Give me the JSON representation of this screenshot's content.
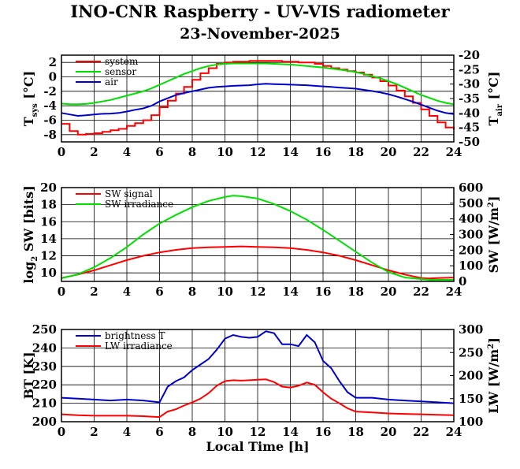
{
  "title": "INO-CNR Raspberry - UV-VIS radiometer",
  "date": "23-November-2025",
  "chart_data": [
    {
      "type": "line",
      "xlabel": "",
      "xlim": [
        0,
        24
      ],
      "xticks": [
        "0",
        "2",
        "4",
        "6",
        "8",
        "10",
        "12",
        "14",
        "16",
        "18",
        "20",
        "22",
        "24"
      ],
      "ylabel": "T",
      "ylabel_sub": "sys",
      "ylabel_unit": "[°C]",
      "ylim": [
        -9,
        3
      ],
      "yticks": [
        "2",
        "0",
        "-2",
        "-4",
        "-6",
        "-8"
      ],
      "y2label": "T",
      "y2label_sub": "air",
      "y2label_unit": "[°C]",
      "y2lim": [
        -50,
        -20
      ],
      "y2ticks": [
        "-20",
        "-25",
        "-30",
        "-35",
        "-40",
        "-45",
        "-50"
      ],
      "legend": "top-left",
      "series": [
        {
          "name": "system",
          "color": "#ff0000",
          "axis": "left",
          "x": [
            0,
            0.5,
            1,
            1.5,
            2,
            2.5,
            3,
            3.5,
            4,
            4.5,
            5,
            5.5,
            6,
            6.5,
            7,
            7.5,
            8,
            8.5,
            9,
            9.5,
            10,
            10.5,
            11,
            11.5,
            12,
            12.5,
            13,
            13.5,
            14,
            14.5,
            15,
            15.5,
            16,
            16.5,
            17,
            17.5,
            18,
            18.5,
            19,
            19.5,
            20,
            20.5,
            21,
            21.5,
            22,
            22.5,
            23,
            23.5,
            24
          ],
          "y": [
            -6.5,
            -7.5,
            -8,
            -7.9,
            -7.8,
            -7.6,
            -7.4,
            -7.2,
            -6.8,
            -6.4,
            -6.0,
            -5.3,
            -4.2,
            -3.3,
            -2.3,
            -1.4,
            -0.4,
            0.5,
            1.2,
            1.8,
            2.0,
            2.1,
            2.1,
            2.2,
            2.2,
            2.2,
            2.2,
            2.1,
            2.1,
            2.0,
            2.0,
            1.8,
            1.5,
            1.2,
            1.0,
            0.8,
            0.6,
            0.3,
            -0.1,
            -0.6,
            -1.2,
            -1.9,
            -2.7,
            -3.6,
            -4.5,
            -5.4,
            -6.3,
            -7.0,
            -7.3
          ]
        },
        {
          "name": "sensor",
          "color": "#00e000",
          "axis": "left",
          "x": [
            0,
            0.5,
            1,
            1.5,
            2,
            2.5,
            3,
            3.5,
            4,
            4.5,
            5,
            5.5,
            6,
            6.5,
            7,
            7.5,
            8,
            8.5,
            9,
            9.5,
            10,
            10.5,
            11,
            11.5,
            12,
            12.5,
            13,
            13.5,
            14,
            14.5,
            15,
            15.5,
            16,
            16.5,
            17,
            17.5,
            18,
            18.5,
            19,
            19.5,
            20,
            20.5,
            21,
            21.5,
            22,
            22.5,
            23,
            23.5,
            24
          ],
          "y": [
            -3.7,
            -3.8,
            -3.8,
            -3.75,
            -3.6,
            -3.4,
            -3.2,
            -2.9,
            -2.6,
            -2.3,
            -2.0,
            -1.6,
            -1.1,
            -0.6,
            -0.1,
            0.4,
            0.8,
            1.2,
            1.5,
            1.7,
            1.8,
            1.85,
            1.85,
            1.85,
            1.85,
            1.85,
            1.8,
            1.75,
            1.7,
            1.6,
            1.5,
            1.4,
            1.3,
            1.15,
            1.0,
            0.85,
            0.65,
            0.4,
            0.1,
            -0.2,
            -0.6,
            -1.0,
            -1.5,
            -2.0,
            -2.5,
            -2.9,
            -3.3,
            -3.6,
            -3.8
          ]
        },
        {
          "name": "air",
          "color": "#0000cc",
          "axis": "right",
          "x": [
            0,
            0.5,
            1,
            1.5,
            2,
            2.5,
            3,
            3.5,
            4,
            4.5,
            5,
            5.5,
            6,
            6.5,
            7,
            7.5,
            8,
            8.5,
            9,
            9.5,
            10,
            10.5,
            11,
            11.5,
            12,
            12.5,
            13,
            13.5,
            14,
            14.5,
            15,
            15.5,
            16,
            16.5,
            17,
            17.5,
            18,
            18.5,
            19,
            19.5,
            20,
            20.5,
            21,
            21.5,
            22,
            22.5,
            23,
            23.5,
            24
          ],
          "y": [
            -40.0,
            -40.5,
            -41.0,
            -40.8,
            -40.5,
            -40.3,
            -40.2,
            -40.0,
            -39.5,
            -38.9,
            -38.4,
            -37.5,
            -36.0,
            -34.9,
            -33.8,
            -33.1,
            -32.5,
            -31.9,
            -31.3,
            -31.0,
            -30.8,
            -30.6,
            -30.5,
            -30.4,
            -30.1,
            -29.9,
            -30.0,
            -30.1,
            -30.2,
            -30.3,
            -30.4,
            -30.6,
            -30.8,
            -31.0,
            -31.2,
            -31.4,
            -31.6,
            -32.0,
            -32.4,
            -32.9,
            -33.5,
            -34.3,
            -35.2,
            -36.1,
            -37.1,
            -38.2,
            -39.2,
            -40.0,
            -40.4
          ]
        }
      ]
    },
    {
      "type": "line",
      "xlabel": "",
      "xlim": [
        0,
        24
      ],
      "xticks": [
        "0",
        "2",
        "4",
        "6",
        "8",
        "10",
        "12",
        "14",
        "16",
        "18",
        "20",
        "22",
        "24"
      ],
      "ylabel": "log",
      "ylabel_sub": "2",
      "ylabel_unit": "SW [bits]",
      "ylim": [
        9,
        20
      ],
      "yticks": [
        "20",
        "18",
        "16",
        "14",
        "12",
        "10"
      ],
      "y2label": "SW [W/m",
      "y2label_sup": "2",
      "y2label_end": "]",
      "y2lim": [
        0,
        600
      ],
      "y2ticks": [
        "600",
        "500",
        "400",
        "300",
        "200",
        "100",
        "0"
      ],
      "legend": "top-left",
      "series": [
        {
          "name": "SW signal",
          "color": "#ff0000",
          "axis": "left",
          "x": [
            0,
            1,
            2,
            3,
            4,
            5,
            6,
            7,
            8,
            9,
            10,
            11,
            12,
            13,
            14,
            15,
            16,
            17,
            18,
            19,
            20,
            21,
            22,
            22.5,
            23,
            24
          ],
          "y": [
            9.4,
            9.8,
            10.3,
            10.9,
            11.5,
            12.0,
            12.4,
            12.7,
            12.9,
            13.0,
            13.05,
            13.1,
            13.05,
            13.0,
            12.9,
            12.7,
            12.4,
            12.0,
            11.5,
            10.9,
            10.3,
            9.8,
            9.4,
            9.35,
            9.4,
            9.45
          ]
        },
        {
          "name": "SW irradiance",
          "color": "#00e000",
          "axis": "right",
          "x": [
            0,
            1,
            2,
            3,
            4,
            5,
            6,
            7,
            8,
            9,
            10,
            10.5,
            11,
            12,
            13,
            14,
            15,
            16,
            17,
            18,
            19,
            20,
            21,
            22,
            22.5,
            23,
            24
          ],
          "y": [
            20,
            45,
            90,
            150,
            220,
            300,
            370,
            425,
            475,
            515,
            540,
            548,
            545,
            530,
            495,
            450,
            395,
            330,
            260,
            190,
            120,
            60,
            25,
            15,
            10,
            10,
            10
          ]
        }
      ]
    },
    {
      "type": "line",
      "xlabel": "Local Time [h]",
      "xlim": [
        0,
        24
      ],
      "xticks": [
        "0",
        "2",
        "4",
        "6",
        "8",
        "10",
        "12",
        "14",
        "16",
        "18",
        "20",
        "22",
        "24"
      ],
      "ylabel": "BT [K]",
      "ylim": [
        200,
        250
      ],
      "yticks": [
        "250",
        "240",
        "230",
        "220",
        "210",
        "200"
      ],
      "y2label": "LW [W/m",
      "y2label_sup": "2",
      "y2label_end": "]",
      "y2lim": [
        100,
        300
      ],
      "y2ticks": [
        "300",
        "250",
        "200",
        "150",
        "100"
      ],
      "legend": "top-left",
      "series": [
        {
          "name": "brightness T",
          "color": "#0000cc",
          "axis": "left",
          "x": [
            0,
            1,
            2,
            3,
            4,
            5,
            5.5,
            6,
            6.5,
            7,
            7.5,
            8,
            8.5,
            9,
            9.5,
            10,
            10.5,
            11,
            11.5,
            12,
            12.5,
            13,
            13.5,
            14,
            14.5,
            15,
            15.5,
            16,
            16.5,
            17,
            17.5,
            18,
            19,
            20,
            21,
            22,
            23,
            24
          ],
          "y": [
            213,
            212.5,
            212,
            211.5,
            212,
            211.5,
            211,
            210.5,
            219,
            222,
            224,
            228,
            231,
            234,
            239,
            245,
            247,
            246,
            245.5,
            246,
            249,
            248,
            242,
            242,
            241,
            247,
            243,
            233,
            229,
            222,
            216,
            213,
            213,
            212,
            211.5,
            211,
            210.5,
            210
          ]
        },
        {
          "name": "LW irradiance",
          "color": "#ff0000",
          "axis": "right",
          "x": [
            0,
            1,
            2,
            3,
            4,
            5,
            5.5,
            6,
            6.5,
            7,
            7.5,
            8,
            8.5,
            9,
            9.5,
            10,
            10.5,
            11,
            11.5,
            12,
            12.5,
            13,
            13.5,
            14,
            14.5,
            15,
            15.5,
            16,
            16.5,
            17,
            17.5,
            18,
            19,
            20,
            21,
            22,
            23,
            24
          ],
          "y": [
            116,
            114,
            113,
            113,
            113,
            112,
            111,
            110,
            122,
            127,
            135,
            142,
            150,
            162,
            178,
            188,
            190,
            189,
            190,
            191,
            192,
            186,
            176,
            174,
            178,
            185,
            180,
            164,
            150,
            140,
            129,
            122,
            120,
            118,
            117,
            116,
            115,
            114
          ]
        }
      ]
    }
  ]
}
